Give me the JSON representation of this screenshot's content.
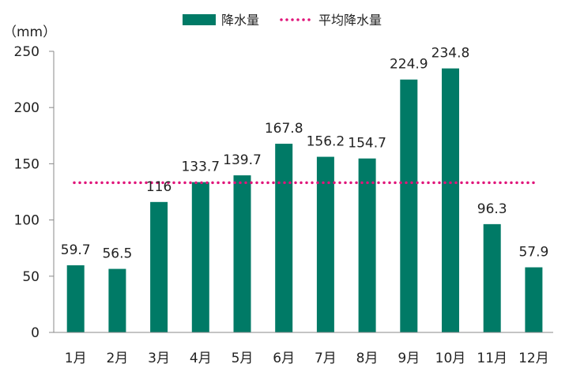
{
  "chart_data": {
    "type": "bar",
    "categories": [
      "1月",
      "2月",
      "3月",
      "4月",
      "5月",
      "6月",
      "7月",
      "8月",
      "9月",
      "10月",
      "11月",
      "12月"
    ],
    "series": [
      {
        "name": "降水量",
        "values": [
          59.7,
          56.5,
          116,
          133.7,
          139.7,
          167.8,
          156.2,
          154.7,
          224.9,
          234.8,
          96.3,
          57.9
        ],
        "data_labels": [
          "59.7",
          "56.5",
          "116",
          "133.7",
          "139.7",
          "167.8",
          "156.2",
          "154.7",
          "224.9",
          "234.8",
          "96.3",
          "57.9"
        ],
        "color": "#007a66"
      }
    ],
    "reference_line": {
      "name": "平均降水量",
      "value": 133.2,
      "color": "#e0157a",
      "style": "dotted"
    },
    "unit_label": "（mm）",
    "ylim": [
      0,
      250
    ],
    "yticks": [
      0,
      50,
      100,
      150,
      200,
      250
    ],
    "ytick_labels": [
      "0",
      "50",
      "100",
      "150",
      "200",
      "250"
    ],
    "legend_placement": "top-center",
    "grid": false
  }
}
